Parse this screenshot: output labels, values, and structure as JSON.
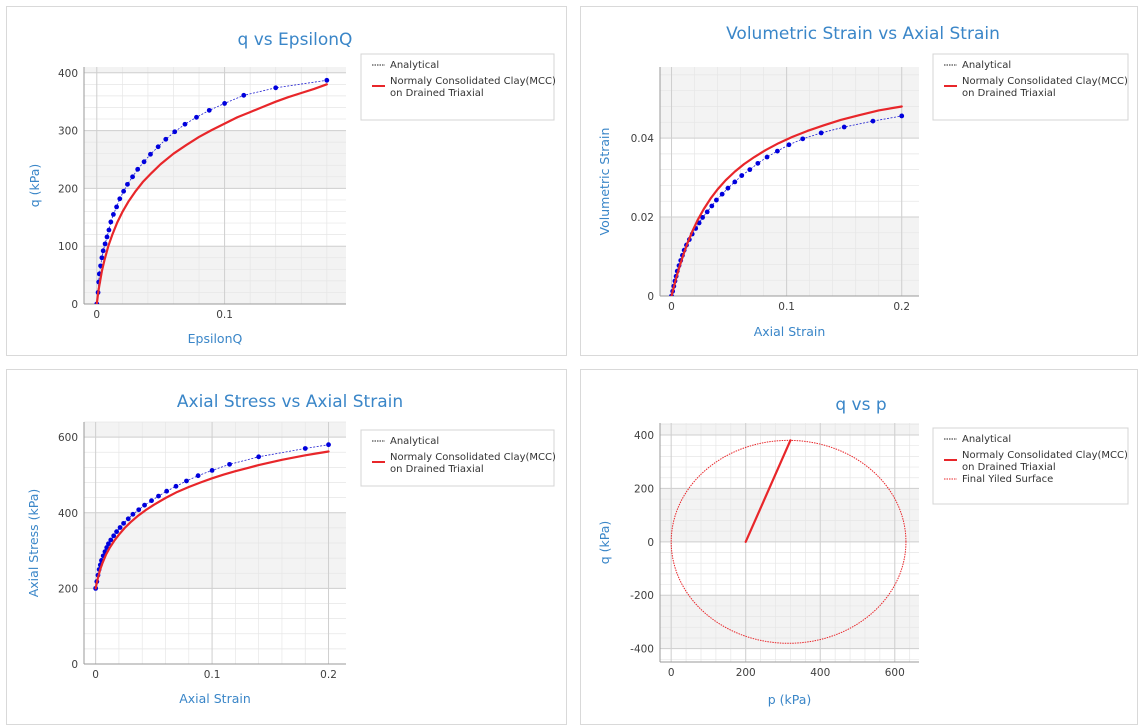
{
  "chart_data": [
    {
      "type": "line",
      "title": "q vs EpsilonQ",
      "xlabel": "EpsilonQ",
      "ylabel": "q (kPa)",
      "xlim": [
        -0.01,
        0.195
      ],
      "ylim": [
        0,
        410
      ],
      "xticks": [
        {
          "v": 0,
          "label": "0"
        },
        {
          "v": 0.1,
          "label": "0.1"
        }
      ],
      "yticks": [
        {
          "v": 0,
          "label": "0"
        },
        {
          "v": 100,
          "label": "100"
        },
        {
          "v": 200,
          "label": "200"
        },
        {
          "v": 300,
          "label": "300"
        },
        {
          "v": 400,
          "label": "400"
        }
      ],
      "legend": [
        "Analytical",
        "Normaly Consolidated Clay(MCC)",
        "on Drained Triaxial"
      ],
      "series": [
        {
          "name": "Analytical",
          "style": "dots",
          "color": "#0000dd",
          "points": [
            [
              0,
              0
            ],
            [
              0.001,
              20
            ],
            [
              0.0015,
              38
            ],
            [
              0.002,
              52
            ],
            [
              0.003,
              66
            ],
            [
              0.004,
              80
            ],
            [
              0.005,
              92
            ],
            [
              0.0065,
              104
            ],
            [
              0.008,
              116
            ],
            [
              0.0095,
              128
            ],
            [
              0.011,
              142
            ],
            [
              0.013,
              155
            ],
            [
              0.0155,
              168
            ],
            [
              0.018,
              182
            ],
            [
              0.021,
              195
            ],
            [
              0.024,
              207
            ],
            [
              0.028,
              220
            ],
            [
              0.032,
              233
            ],
            [
              0.037,
              246
            ],
            [
              0.042,
              259
            ],
            [
              0.048,
              272
            ],
            [
              0.054,
              285
            ],
            [
              0.061,
              298
            ],
            [
              0.069,
              311
            ],
            [
              0.078,
              323
            ],
            [
              0.088,
              335
            ],
            [
              0.1,
              347
            ],
            [
              0.115,
              361
            ],
            [
              0.14,
              374
            ],
            [
              0.18,
              387
            ]
          ]
        },
        {
          "name": "Normaly Consolidated Clay(MCC) on Drained Triaxial",
          "style": "solid",
          "color": "#e8262a",
          "points": [
            [
              0,
              0
            ],
            [
              0.001,
              18
            ],
            [
              0.002,
              32
            ],
            [
              0.004,
              57
            ],
            [
              0.006,
              76
            ],
            [
              0.009,
              100
            ],
            [
              0.012,
              119
            ],
            [
              0.016,
              141
            ],
            [
              0.02,
              159
            ],
            [
              0.025,
              178
            ],
            [
              0.03,
              194
            ],
            [
              0.036,
              211
            ],
            [
              0.043,
              227
            ],
            [
              0.05,
              242
            ],
            [
              0.06,
              260
            ],
            [
              0.07,
              275
            ],
            [
              0.08,
              289
            ],
            [
              0.09,
              301
            ],
            [
              0.1,
              312
            ],
            [
              0.11,
              323
            ],
            [
              0.12,
              332
            ],
            [
              0.13,
              341
            ],
            [
              0.14,
              350
            ],
            [
              0.15,
              358
            ],
            [
              0.16,
              365
            ],
            [
              0.17,
              372
            ],
            [
              0.18,
              380
            ]
          ]
        }
      ]
    },
    {
      "type": "line",
      "title": "Volumetric Strain vs Axial Strain",
      "xlabel": "Axial Strain",
      "ylabel": "Volumetric Strain",
      "xlim": [
        -0.01,
        0.215
      ],
      "ylim": [
        0,
        0.058
      ],
      "xticks": [
        {
          "v": 0,
          "label": "0"
        },
        {
          "v": 0.1,
          "label": "0.1"
        },
        {
          "v": 0.2,
          "label": "0.2"
        }
      ],
      "yticks": [
        {
          "v": 0,
          "label": "0"
        },
        {
          "v": 0.02,
          "label": "0.02"
        },
        {
          "v": 0.04,
          "label": "0.04"
        }
      ],
      "legend": [
        "Analytical",
        "Normaly Consolidated Clay(MCC)",
        "on Drained Triaxial"
      ],
      "series": [
        {
          "name": "Analytical",
          "style": "dots",
          "color": "#0000dd",
          "points": [
            [
              0,
              0
            ],
            [
              0.001,
              0.0012
            ],
            [
              0.002,
              0.0025
            ],
            [
              0.003,
              0.0038
            ],
            [
              0.004,
              0.005
            ],
            [
              0.005,
              0.0063
            ],
            [
              0.0065,
              0.0077
            ],
            [
              0.008,
              0.009
            ],
            [
              0.0095,
              0.0103
            ],
            [
              0.011,
              0.0116
            ],
            [
              0.013,
              0.0129
            ],
            [
              0.0155,
              0.0143
            ],
            [
              0.018,
              0.0157
            ],
            [
              0.021,
              0.0171
            ],
            [
              0.024,
              0.0185
            ],
            [
              0.027,
              0.0199
            ],
            [
              0.031,
              0.0213
            ],
            [
              0.035,
              0.0228
            ],
            [
              0.039,
              0.0243
            ],
            [
              0.044,
              0.0258
            ],
            [
              0.049,
              0.0273
            ],
            [
              0.055,
              0.0289
            ],
            [
              0.061,
              0.0305
            ],
            [
              0.068,
              0.032
            ],
            [
              0.075,
              0.0336
            ],
            [
              0.083,
              0.0352
            ],
            [
              0.092,
              0.0367
            ],
            [
              0.102,
              0.0383
            ],
            [
              0.114,
              0.0398
            ],
            [
              0.13,
              0.0413
            ],
            [
              0.15,
              0.0428
            ],
            [
              0.175,
              0.0443
            ],
            [
              0.2,
              0.0456
            ]
          ]
        },
        {
          "name": "Normaly Consolidated Clay(MCC) on Drained Triaxial",
          "style": "solid",
          "color": "#e8262a",
          "points": [
            [
              0,
              0
            ],
            [
              0.002,
              0.0023
            ],
            [
              0.004,
              0.0045
            ],
            [
              0.007,
              0.0075
            ],
            [
              0.01,
              0.0102
            ],
            [
              0.014,
              0.0135
            ],
            [
              0.018,
              0.0163
            ],
            [
              0.023,
              0.0194
            ],
            [
              0.028,
              0.022
            ],
            [
              0.034,
              0.0247
            ],
            [
              0.04,
              0.027
            ],
            [
              0.047,
              0.0293
            ],
            [
              0.055,
              0.0315
            ],
            [
              0.063,
              0.0334
            ],
            [
              0.072,
              0.0352
            ],
            [
              0.082,
              0.037
            ],
            [
              0.093,
              0.0387
            ],
            [
              0.105,
              0.0403
            ],
            [
              0.118,
              0.0418
            ],
            [
              0.132,
              0.0432
            ],
            [
              0.147,
              0.0446
            ],
            [
              0.163,
              0.0458
            ],
            [
              0.18,
              0.047
            ],
            [
              0.2,
              0.048
            ]
          ]
        }
      ]
    },
    {
      "type": "line",
      "title": "Axial Stress vs Axial Strain",
      "xlabel": "Axial Strain",
      "ylabel": "Axial Stress (kPa)",
      "xlim": [
        -0.01,
        0.215
      ],
      "ylim": [
        0,
        640
      ],
      "xticks": [
        {
          "v": 0,
          "label": "0"
        },
        {
          "v": 0.1,
          "label": "0.1"
        },
        {
          "v": 0.2,
          "label": "0.2"
        }
      ],
      "yticks": [
        {
          "v": 0,
          "label": "0"
        },
        {
          "v": 200,
          "label": "200"
        },
        {
          "v": 400,
          "label": "400"
        },
        {
          "v": 600,
          "label": "600"
        }
      ],
      "legend": [
        "Analytical",
        "Normaly Consolidated Clay(MCC)",
        "on Drained Triaxial"
      ],
      "series": [
        {
          "name": "Analytical",
          "style": "dots",
          "color": "#0000dd",
          "points": [
            [
              0,
              200
            ],
            [
              0.001,
              218
            ],
            [
              0.002,
              235
            ],
            [
              0.003,
              250
            ],
            [
              0.004,
              262
            ],
            [
              0.005,
              274
            ],
            [
              0.0065,
              286
            ],
            [
              0.008,
              297
            ],
            [
              0.0095,
              308
            ],
            [
              0.011,
              318
            ],
            [
              0.013,
              328
            ],
            [
              0.0155,
              339
            ],
            [
              0.018,
              350
            ],
            [
              0.021,
              361
            ],
            [
              0.024,
              372
            ],
            [
              0.028,
              384
            ],
            [
              0.032,
              396
            ],
            [
              0.037,
              408
            ],
            [
              0.042,
              420
            ],
            [
              0.048,
              432
            ],
            [
              0.054,
              444
            ],
            [
              0.061,
              457
            ],
            [
              0.069,
              470
            ],
            [
              0.078,
              484
            ],
            [
              0.088,
              498
            ],
            [
              0.1,
              512
            ],
            [
              0.115,
              528
            ],
            [
              0.14,
              548
            ],
            [
              0.18,
              570
            ],
            [
              0.2,
              580
            ]
          ]
        },
        {
          "name": "Normaly Consolidated Clay(MCC) on Drained Triaxial",
          "style": "solid",
          "color": "#e8262a",
          "points": [
            [
              0,
              200
            ],
            [
              0.001,
              215
            ],
            [
              0.002,
              228
            ],
            [
              0.004,
              251
            ],
            [
              0.006,
              268
            ],
            [
              0.009,
              290
            ],
            [
              0.012,
              307
            ],
            [
              0.016,
              326
            ],
            [
              0.02,
              342
            ],
            [
              0.025,
              360
            ],
            [
              0.03,
              375
            ],
            [
              0.036,
              391
            ],
            [
              0.043,
              407
            ],
            [
              0.05,
              421
            ],
            [
              0.06,
              439
            ],
            [
              0.07,
              455
            ],
            [
              0.08,
              468
            ],
            [
              0.09,
              480
            ],
            [
              0.1,
              491
            ],
            [
              0.11,
              501
            ],
            [
              0.12,
              510
            ],
            [
              0.13,
              518
            ],
            [
              0.14,
              526
            ],
            [
              0.15,
              533
            ],
            [
              0.16,
              540
            ],
            [
              0.17,
              546
            ],
            [
              0.18,
              552
            ],
            [
              0.19,
              557
            ],
            [
              0.2,
              562
            ]
          ]
        }
      ]
    },
    {
      "type": "line",
      "title": "q vs p",
      "xlabel": "p (kPa)",
      "ylabel": "q (kPa)",
      "xlim": [
        -30,
        665
      ],
      "ylim": [
        -450,
        445
      ],
      "xticks": [
        {
          "v": 0,
          "label": "0"
        },
        {
          "v": 200,
          "label": "200"
        },
        {
          "v": 400,
          "label": "400"
        },
        {
          "v": 600,
          "label": "600"
        }
      ],
      "yticks": [
        {
          "v": -400,
          "label": "-400"
        },
        {
          "v": -200,
          "label": "-200"
        },
        {
          "v": 0,
          "label": "0"
        },
        {
          "v": 200,
          "label": "200"
        },
        {
          "v": 400,
          "label": "400"
        }
      ],
      "legend": [
        "Analytical",
        "Normaly Consolidated Clay(MCC)",
        "on Drained Triaxial",
        "Final Yiled Surface"
      ],
      "series": [
        {
          "name": "Normaly Consolidated Clay(MCC) on Drained Triaxial",
          "style": "solid",
          "color": "#e8262a",
          "points": [
            [
              200,
              0
            ],
            [
              320,
              380
            ]
          ]
        },
        {
          "name": "Final Yiled Surface",
          "style": "ellipse",
          "color": "#e8262a",
          "center": [
            315,
            0
          ],
          "radius_p": 315,
          "radius_q": 380
        }
      ]
    }
  ]
}
